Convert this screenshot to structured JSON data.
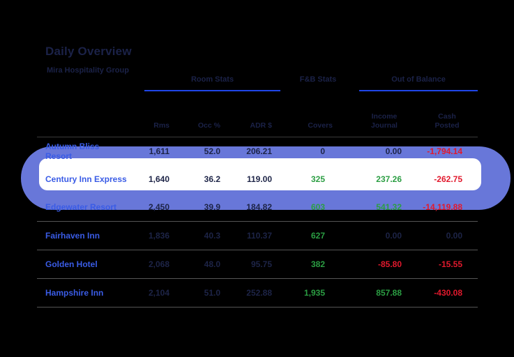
{
  "page": {
    "title": "Daily Overview",
    "subtitle": "Mira Hospitality Group"
  },
  "table": {
    "groups": [
      {
        "label": "Room Stats"
      },
      {
        "label": "F&B Stats"
      },
      {
        "label": "Out of Balance"
      }
    ],
    "columns": {
      "name": "",
      "rms": "Rms",
      "occ": "Occ %",
      "adr": "ADR $",
      "covers": "Covers",
      "income": "Income Journal",
      "cash": "Cash Posted"
    },
    "rows": [
      {
        "name": "Autumn Bliss Resort",
        "rms": "1,611",
        "occ": "52.0",
        "adr": "206.21",
        "covers": {
          "v": "0",
          "tone": "neutral"
        },
        "income": {
          "v": "0.00",
          "tone": "neutral"
        },
        "cash": {
          "v": "-1,794.14",
          "tone": "neg"
        },
        "highlighted": false,
        "bordered": false
      },
      {
        "name": "Century Inn Express",
        "rms": "1,640",
        "occ": "36.2",
        "adr": "119.00",
        "covers": {
          "v": "325",
          "tone": "pos"
        },
        "income": {
          "v": "237.26",
          "tone": "pos"
        },
        "cash": {
          "v": "-262.75",
          "tone": "neg"
        },
        "highlighted": true,
        "bordered": false
      },
      {
        "name": "Edgewater Resort",
        "rms": "2,450",
        "occ": "39.9",
        "adr": "184.82",
        "covers": {
          "v": "603",
          "tone": "pos"
        },
        "income": {
          "v": "541.32",
          "tone": "pos"
        },
        "cash": {
          "v": "-14,119.88",
          "tone": "neg"
        },
        "highlighted": false,
        "bordered": true
      },
      {
        "name": "Fairhaven Inn",
        "rms": "1,836",
        "occ": "40.3",
        "adr": "110.37",
        "covers": {
          "v": "627",
          "tone": "pos"
        },
        "income": {
          "v": "0.00",
          "tone": "neutral"
        },
        "cash": {
          "v": "0.00",
          "tone": "neutral"
        },
        "highlighted": false,
        "bordered": true
      },
      {
        "name": "Golden Hotel",
        "rms": "2,068",
        "occ": "48.0",
        "adr": "95.75",
        "covers": {
          "v": "382",
          "tone": "pos"
        },
        "income": {
          "v": "-85.80",
          "tone": "neg"
        },
        "cash": {
          "v": "-15.55",
          "tone": "neg"
        },
        "highlighted": false,
        "bordered": true
      },
      {
        "name": "Hampshire Inn",
        "rms": "2,104",
        "occ": "51.0",
        "adr": "252.88",
        "covers": {
          "v": "1,935",
          "tone": "pos"
        },
        "income": {
          "v": "857.88",
          "tone": "pos"
        },
        "cash": {
          "v": "-430.08",
          "tone": "neg"
        },
        "highlighted": false,
        "bordered": true
      }
    ]
  },
  "colors": {
    "bg": "#000000",
    "navy": "#1D2447",
    "navy_head": "#1B2248",
    "blue_name": "#3A5CE6",
    "green": "#2B9E43",
    "red": "#E2192D",
    "accent_line": "#1F46E8",
    "band": "#6877D9",
    "divider": "#555555",
    "header_divider": "#3A3A3A"
  }
}
